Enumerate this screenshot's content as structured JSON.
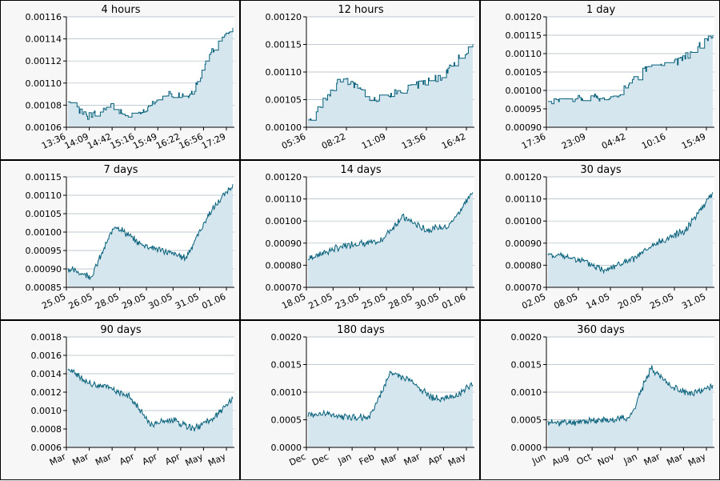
{
  "chart_data": [
    {
      "type": "area",
      "title": "4 hours",
      "xticks": [
        "13:36",
        "14:09",
        "14:42",
        "15:16",
        "15:49",
        "16:22",
        "16:56",
        "17:29"
      ],
      "ylim": [
        0.00106,
        0.00116
      ],
      "yticks": [
        "0.00106",
        "0.00108",
        "0.00110",
        "0.00112",
        "0.00114",
        "0.00116"
      ],
      "x": [
        0,
        1,
        2,
        3,
        4,
        5,
        6,
        7
      ],
      "y": [
        0.00108,
        0.00107,
        0.00108,
        0.00107,
        0.00108,
        0.00109,
        0.00109,
        0.00113
      ],
      "last": 0.00115,
      "style": "step"
    },
    {
      "type": "area",
      "title": "12 hours",
      "xticks": [
        "05:36",
        "08:22",
        "11:09",
        "13:56",
        "16:42"
      ],
      "ylim": [
        0.001,
        0.0012
      ],
      "yticks": [
        "0.00100",
        "0.00105",
        "0.00110",
        "0.00115",
        "0.00120"
      ],
      "x": [
        0,
        1,
        2,
        3,
        4
      ],
      "y": [
        0.00101,
        0.00109,
        0.00105,
        0.00107,
        0.00109
      ],
      "last": 0.00115,
      "style": "step"
    },
    {
      "type": "area",
      "title": "1 day",
      "xticks": [
        "17:36",
        "23:09",
        "04:42",
        "10:16",
        "15:49"
      ],
      "ylim": [
        0.0009,
        0.0012
      ],
      "yticks": [
        "0.00090",
        "0.00095",
        "0.00100",
        "0.00105",
        "0.00110",
        "0.00115",
        "0.00120"
      ],
      "x": [
        0,
        1,
        2,
        3,
        4
      ],
      "y": [
        0.00097,
        0.00098,
        0.00098,
        0.00106,
        0.00108
      ],
      "last": 0.00115,
      "style": "step"
    },
    {
      "type": "area",
      "title": "7 days",
      "xticks": [
        "25.05",
        "26.05",
        "28.05",
        "29.05",
        "30.05",
        "31.05",
        "01.06"
      ],
      "ylim": [
        0.00085,
        0.00115
      ],
      "yticks": [
        "0.00085",
        "0.00090",
        "0.00095",
        "0.00100",
        "0.00105",
        "0.00110",
        "0.00115"
      ],
      "x": [
        0,
        1,
        2,
        3,
        4,
        5,
        6
      ],
      "y": [
        0.0009,
        0.00088,
        0.00102,
        0.00097,
        0.00095,
        0.00093,
        0.00105
      ],
      "last": 0.00113,
      "style": "noisy"
    },
    {
      "type": "area",
      "title": "14 days",
      "xticks": [
        "18.05",
        "21.05",
        "23.05",
        "25.05",
        "28.05",
        "30.05",
        "01.06"
      ],
      "ylim": [
        0.0007,
        0.0012
      ],
      "yticks": [
        "0.00070",
        "0.00080",
        "0.00090",
        "0.00100",
        "0.00110",
        "0.00120"
      ],
      "x": [
        0,
        1,
        2,
        3,
        4,
        5,
        6
      ],
      "y": [
        0.00083,
        0.00087,
        0.0009,
        0.0009,
        0.00102,
        0.00096,
        0.00098
      ],
      "last": 0.00113,
      "style": "noisy"
    },
    {
      "type": "area",
      "title": "30 days",
      "xticks": [
        "02.05",
        "08.05",
        "14.05",
        "20.05",
        "25.05",
        "31.05"
      ],
      "ylim": [
        0.0007,
        0.0012
      ],
      "yticks": [
        "0.00070",
        "0.00080",
        "0.00090",
        "0.00100",
        "0.00110",
        "0.00120"
      ],
      "x": [
        0,
        1,
        2,
        3,
        4,
        5
      ],
      "y": [
        0.00085,
        0.00083,
        0.00078,
        0.00082,
        0.0009,
        0.00096
      ],
      "last": 0.00113,
      "style": "noisy"
    },
    {
      "type": "area",
      "title": "90 days",
      "xticks": [
        "Mar",
        "Mar",
        "Mar",
        "Apr",
        "Apr",
        "Apr",
        "May",
        "May"
      ],
      "ylim": [
        0.0006,
        0.0018
      ],
      "yticks": [
        "0.0006",
        "0.0008",
        "0.0010",
        "0.0012",
        "0.0014",
        "0.0016",
        "0.0018"
      ],
      "x": [
        0,
        1,
        2,
        3,
        4,
        5,
        6,
        7
      ],
      "y": [
        0.00145,
        0.0013,
        0.00125,
        0.00115,
        0.00085,
        0.0009,
        0.0008,
        0.0009
      ],
      "last": 0.00113,
      "style": "noisy"
    },
    {
      "type": "area",
      "title": "180 days",
      "xticks": [
        "Dec",
        "Dec",
        "Jan",
        "Feb",
        "Mar",
        "Mar",
        "Apr",
        "May"
      ],
      "ylim": [
        0.0,
        0.002
      ],
      "yticks": [
        "0.0000",
        "0.0005",
        "0.0010",
        "0.0015",
        "0.0020"
      ],
      "x": [
        0,
        1,
        2,
        3,
        4,
        5,
        6,
        7
      ],
      "y": [
        0.0006,
        0.0006,
        0.00055,
        0.00055,
        0.00135,
        0.0012,
        0.0009,
        0.0009
      ],
      "last": 0.00113,
      "style": "noisy"
    },
    {
      "type": "area",
      "title": "360 days",
      "xticks": [
        "Jun",
        "Aug",
        "Oct",
        "Nov",
        "Jan",
        "Mar",
        "Mar",
        "May"
      ],
      "ylim": [
        0.0,
        0.002
      ],
      "yticks": [
        "0.0000",
        "0.0005",
        "0.0010",
        "0.0015",
        "0.0020"
      ],
      "x": [
        0,
        1,
        2,
        3,
        4,
        5,
        6,
        7
      ],
      "y": [
        0.00045,
        0.00045,
        0.00048,
        0.0005,
        0.00055,
        0.00145,
        0.0011,
        0.00095
      ],
      "last": 0.00113,
      "style": "noisy"
    }
  ],
  "colors": {
    "line": "#06607a",
    "fill": "#d6e6ee",
    "grid": "#a9b8c0",
    "axis": "#000000",
    "panel_bg": "#f7f7f7"
  }
}
